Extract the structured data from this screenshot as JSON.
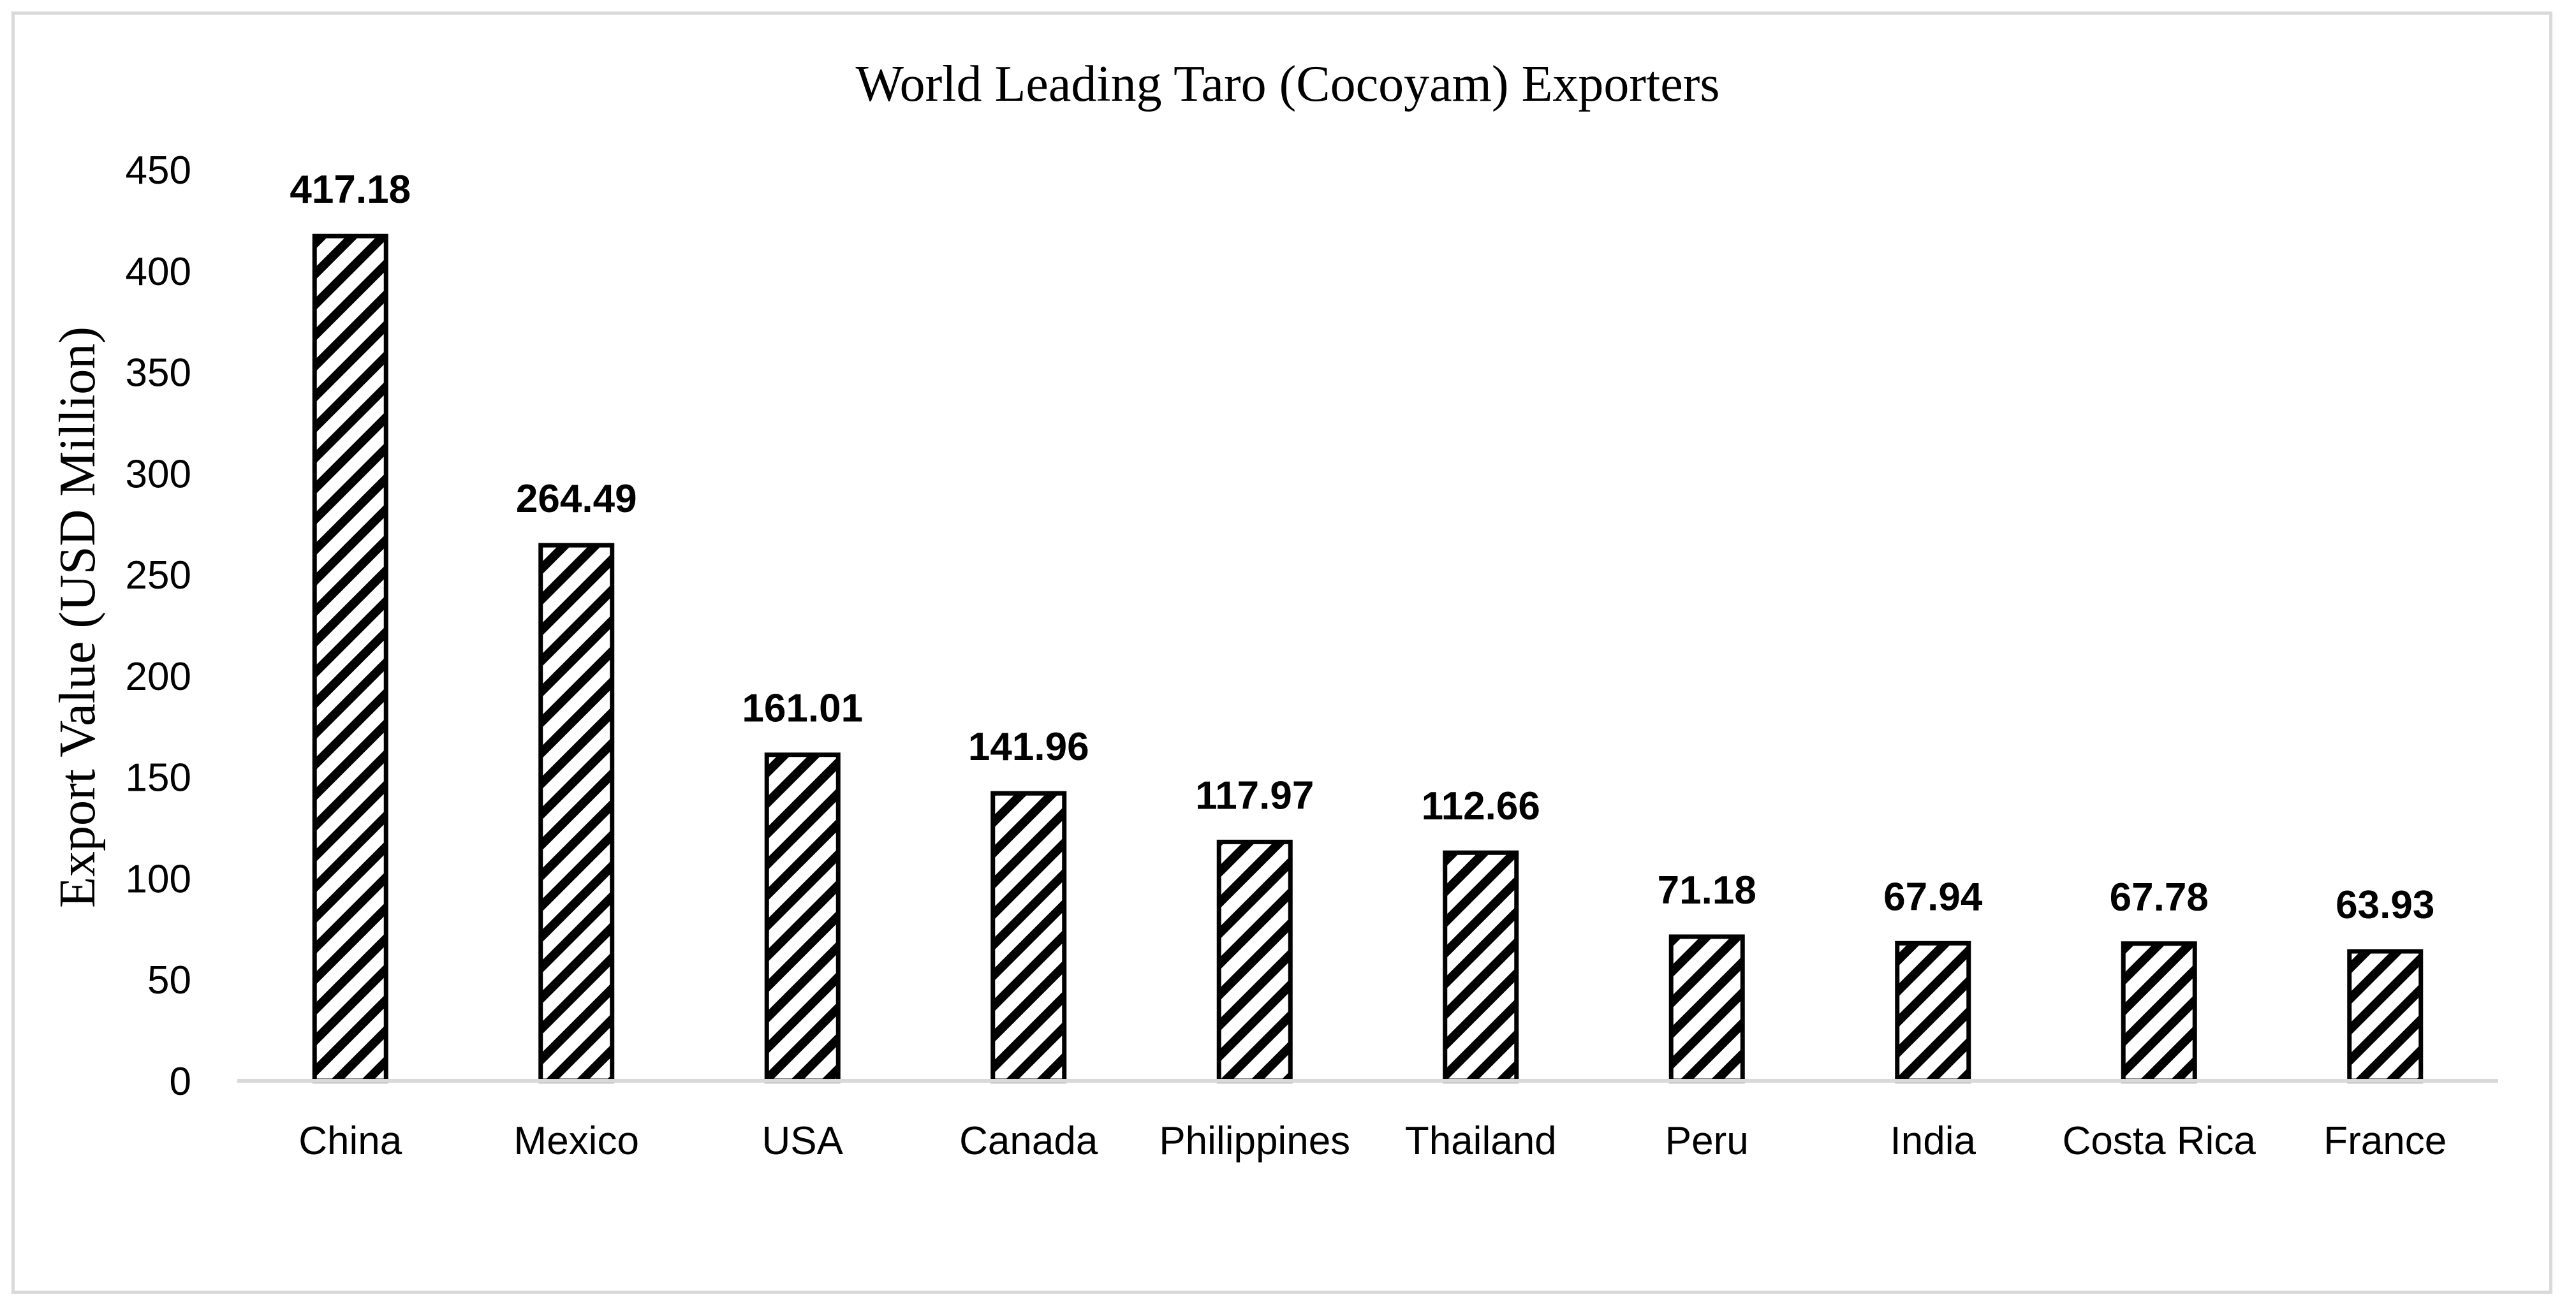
{
  "chart_data": {
    "type": "bar",
    "title": "World Leading Taro (Cocoyam) Exporters",
    "xlabel": "",
    "ylabel": "Export Value (USD Million)",
    "categories": [
      "China",
      "Mexico",
      "USA",
      "Canada",
      "Philippines",
      "Thailand",
      "Peru",
      "India",
      "Costa Rica",
      "France"
    ],
    "values": [
      417.18,
      264.49,
      161.01,
      141.96,
      117.97,
      112.66,
      71.18,
      67.94,
      67.78,
      63.93
    ],
    "data_labels": [
      "417.18",
      "264.49",
      "161.01",
      "141.96",
      "117.97",
      "112.66",
      "71.18",
      "67.94",
      "67.78",
      "63.93"
    ],
    "ylim": [
      0,
      450
    ],
    "yticks": [
      0,
      50,
      100,
      150,
      200,
      250,
      300,
      350,
      400,
      450
    ],
    "ytick_labels": [
      "0",
      "50",
      "100",
      "150",
      "200",
      "250",
      "300",
      "350",
      "400",
      "450"
    ],
    "grid": false,
    "legend": "none",
    "bar_fill": "diagonal black hatch on white",
    "colors": {
      "bar_stroke": "#000000",
      "hatch": "#000000",
      "axis": "#d9d9d9",
      "frame": "#d9d9d9",
      "text": "#000000"
    }
  }
}
